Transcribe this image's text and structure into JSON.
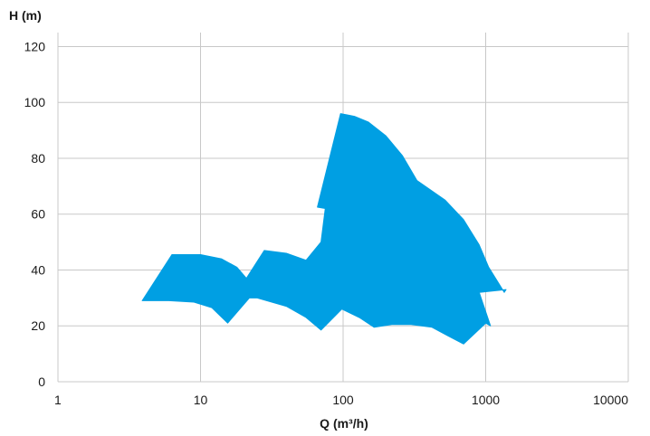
{
  "chart_data": {
    "type": "area",
    "xscale": "log",
    "xlabel": "Q (m³/h)",
    "ylabel": "H (m)",
    "xlim": [
      1,
      10000
    ],
    "ylim": [
      0,
      125
    ],
    "x_ticks": [
      1,
      10,
      100,
      1000,
      10000
    ],
    "x_tick_labels": [
      "1",
      "10",
      "100",
      "1000",
      "10000"
    ],
    "y_ticks": [
      0,
      20,
      40,
      60,
      80,
      100,
      120
    ],
    "y_tick_labels": [
      "0",
      "20",
      "40",
      "60",
      "80",
      "100",
      "120"
    ],
    "grid": true,
    "fill_color": "#009fe3",
    "regions": [
      {
        "name": "",
        "points": [
          [
            3.9,
            29
          ],
          [
            6,
            29
          ],
          [
            9,
            28.5
          ],
          [
            12,
            26.5
          ],
          [
            15.5,
            21
          ],
          [
            22,
            30
          ],
          [
            25,
            30
          ],
          [
            40,
            27
          ],
          [
            55,
            23
          ],
          [
            70,
            18.5
          ],
          [
            98,
            26
          ],
          [
            130,
            23
          ],
          [
            165,
            19.5
          ],
          [
            220,
            20.5
          ],
          [
            300,
            20.5
          ],
          [
            420,
            19.5
          ],
          [
            540,
            16.5
          ],
          [
            700,
            13.5
          ],
          [
            1000,
            21
          ],
          [
            1080,
            20
          ],
          [
            900,
            32
          ],
          [
            1390,
            33
          ],
          [
            1350,
            32
          ],
          [
            1050,
            41
          ],
          [
            900,
            49
          ],
          [
            700,
            58
          ],
          [
            520,
            65
          ],
          [
            330,
            72
          ],
          [
            260,
            81
          ],
          [
            200,
            88
          ],
          [
            150,
            93
          ],
          [
            120,
            95
          ],
          [
            96,
            96
          ],
          [
            66,
            62.5
          ],
          [
            75,
            62
          ],
          [
            70,
            50
          ],
          [
            55,
            43.5
          ],
          [
            40,
            46
          ],
          [
            28,
            47
          ],
          [
            21,
            37
          ],
          [
            18,
            41
          ],
          [
            14,
            44
          ],
          [
            10,
            45.5
          ],
          [
            6.3,
            45.5
          ],
          [
            3.9,
            29
          ]
        ]
      }
    ]
  }
}
